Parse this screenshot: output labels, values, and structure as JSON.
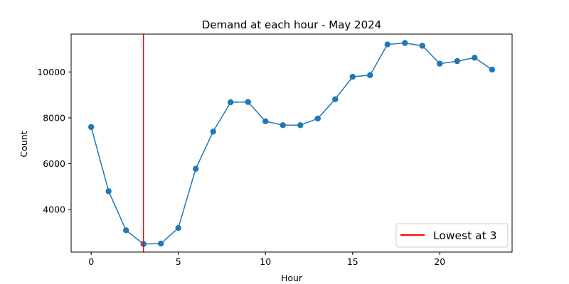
{
  "chart_data": {
    "type": "line",
    "title": "Demand at each hour - May 2024",
    "xlabel": "Hour",
    "ylabel": "Count",
    "xlim": [
      -1.15,
      24.15
    ],
    "ylim": [
      2150,
      11650
    ],
    "x_ticks": [
      0,
      5,
      10,
      15,
      20
    ],
    "y_ticks": [
      4000,
      6000,
      8000,
      10000
    ],
    "grid": false,
    "series": [
      {
        "color": "#1f77b4",
        "marker": "circle",
        "x": [
          0,
          1,
          2,
          3,
          4,
          5,
          6,
          7,
          8,
          9,
          10,
          11,
          12,
          13,
          14,
          15,
          16,
          17,
          18,
          19,
          20,
          21,
          22,
          23
        ],
        "y": [
          7600,
          4800,
          3100,
          2500,
          2520,
          3200,
          5780,
          7400,
          8680,
          8690,
          7850,
          7680,
          7680,
          7970,
          8810,
          9790,
          9860,
          11200,
          11260,
          11140,
          10360,
          10470,
          10620,
          10100
        ]
      }
    ],
    "vline": {
      "x": 3,
      "color": "#ff0000",
      "label": "Lowest at 3"
    },
    "legend": {
      "position": "lower-right"
    }
  }
}
